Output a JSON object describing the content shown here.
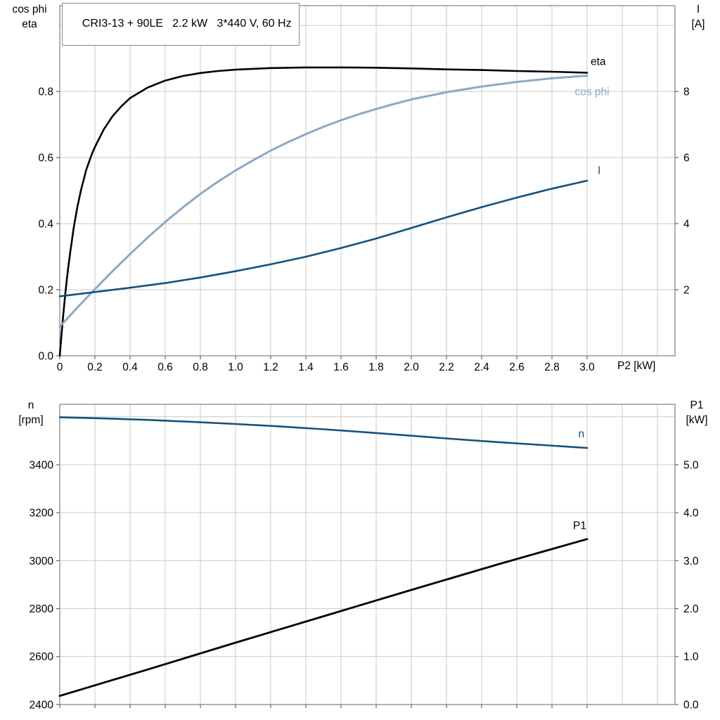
{
  "colors": {
    "grid": "#c9c9c9",
    "frame": "#7f7f7f",
    "tick": "#666666",
    "text": "#000000",
    "black_curve": "#000000",
    "light_blue_curve": "#8ca9c6",
    "dark_blue_curve": "#14517f"
  },
  "chart_data": [
    {
      "type": "line",
      "name": "motor-efficiency-chart",
      "title": "CRI3-13 + 90LE   2.2 kW   3*440 V, 60 Hz",
      "x_axis": {
        "label": "P2 [kW]",
        "min": 0,
        "max": 3.5,
        "show_labels": true,
        "ticks": [
          {
            "v": 0,
            "label": "0"
          },
          {
            "v": 0.2,
            "label": "0.2"
          },
          {
            "v": 0.4,
            "label": "0.4"
          },
          {
            "v": 0.6,
            "label": "0.6"
          },
          {
            "v": 0.8,
            "label": "0.8"
          },
          {
            "v": 1.0,
            "label": "1.0"
          },
          {
            "v": 1.2,
            "label": "1.2"
          },
          {
            "v": 1.4,
            "label": "1.4"
          },
          {
            "v": 1.6,
            "label": "1.6"
          },
          {
            "v": 1.8,
            "label": "1.8"
          },
          {
            "v": 2.0,
            "label": "2.0"
          },
          {
            "v": 2.2,
            "label": "2.2"
          },
          {
            "v": 2.4,
            "label": "2.4"
          },
          {
            "v": 2.6,
            "label": "2.6"
          },
          {
            "v": 2.8,
            "label": "2.8"
          },
          {
            "v": 3.0,
            "label": "3.0"
          }
        ],
        "extra_gridlines": [
          3.2,
          3.4
        ]
      },
      "left_axis": {
        "title_lines": [
          "cos phi",
          "eta"
        ],
        "min": 0,
        "max": 1.06,
        "ticks": [
          {
            "v": 0,
            "label": "0.0"
          },
          {
            "v": 0.2,
            "label": "0.2"
          },
          {
            "v": 0.4,
            "label": "0.4"
          },
          {
            "v": 0.6,
            "label": "0.6"
          },
          {
            "v": 0.8,
            "label": "0.8"
          }
        ],
        "extra_gridlines": [
          1.0
        ]
      },
      "right_axis": {
        "title_lines": [
          "I",
          "[A]"
        ],
        "min": 0,
        "max": 10.6,
        "ticks": [
          {
            "v": 2,
            "label": "2"
          },
          {
            "v": 4,
            "label": "4"
          },
          {
            "v": 6,
            "label": "6"
          },
          {
            "v": 8,
            "label": "8"
          }
        ]
      },
      "series": [
        {
          "name": "eta",
          "label": "eta",
          "axis": "left",
          "color": "#000000",
          "width": 2.6,
          "label_pos": [
            3.02,
            0.892
          ],
          "points": [
            [
              0,
              0
            ],
            [
              0.01,
              0.065
            ],
            [
              0.02,
              0.125
            ],
            [
              0.03,
              0.18
            ],
            [
              0.04,
              0.23
            ],
            [
              0.05,
              0.275
            ],
            [
              0.06,
              0.315
            ],
            [
              0.08,
              0.39
            ],
            [
              0.1,
              0.45
            ],
            [
              0.12,
              0.5
            ],
            [
              0.15,
              0.562
            ],
            [
              0.18,
              0.607
            ],
            [
              0.2,
              0.632
            ],
            [
              0.25,
              0.685
            ],
            [
              0.3,
              0.725
            ],
            [
              0.35,
              0.755
            ],
            [
              0.4,
              0.78
            ],
            [
              0.5,
              0.812
            ],
            [
              0.6,
              0.833
            ],
            [
              0.7,
              0.847
            ],
            [
              0.8,
              0.856
            ],
            [
              0.9,
              0.862
            ],
            [
              1.0,
              0.866
            ],
            [
              1.2,
              0.871
            ],
            [
              1.4,
              0.873
            ],
            [
              1.6,
              0.873
            ],
            [
              1.8,
              0.872
            ],
            [
              2.0,
              0.87
            ],
            [
              2.2,
              0.867
            ],
            [
              2.4,
              0.865
            ],
            [
              2.6,
              0.862
            ],
            [
              2.8,
              0.86
            ],
            [
              3.0,
              0.857
            ]
          ]
        },
        {
          "name": "cos phi",
          "label": "cos phi",
          "axis": "left",
          "color": "#8ca9c6",
          "width": 3,
          "label_pos": [
            2.93,
            0.8
          ],
          "points": [
            [
              0,
              0.088
            ],
            [
              0.1,
              0.146
            ],
            [
              0.2,
              0.202
            ],
            [
              0.3,
              0.256
            ],
            [
              0.4,
              0.308
            ],
            [
              0.5,
              0.358
            ],
            [
              0.6,
              0.405
            ],
            [
              0.7,
              0.449
            ],
            [
              0.8,
              0.49
            ],
            [
              0.9,
              0.527
            ],
            [
              1.0,
              0.561
            ],
            [
              1.1,
              0.592
            ],
            [
              1.2,
              0.621
            ],
            [
              1.3,
              0.647
            ],
            [
              1.4,
              0.671
            ],
            [
              1.5,
              0.693
            ],
            [
              1.6,
              0.713
            ],
            [
              1.7,
              0.731
            ],
            [
              1.8,
              0.747
            ],
            [
              1.9,
              0.762
            ],
            [
              2.0,
              0.776
            ],
            [
              2.2,
              0.798
            ],
            [
              2.4,
              0.815
            ],
            [
              2.6,
              0.829
            ],
            [
              2.8,
              0.84
            ],
            [
              3.0,
              0.848
            ]
          ]
        },
        {
          "name": "I",
          "label": "I",
          "axis": "right",
          "color": "#14517f",
          "width": 2.6,
          "label_pos": [
            3.06,
            5.62
          ],
          "points": [
            [
              0,
              1.8
            ],
            [
              0.2,
              1.93
            ],
            [
              0.4,
              2.06
            ],
            [
              0.6,
              2.2
            ],
            [
              0.8,
              2.37
            ],
            [
              1.0,
              2.56
            ],
            [
              1.2,
              2.77
            ],
            [
              1.4,
              3.0
            ],
            [
              1.6,
              3.26
            ],
            [
              1.8,
              3.55
            ],
            [
              2.0,
              3.87
            ],
            [
              2.2,
              4.19
            ],
            [
              2.4,
              4.5
            ],
            [
              2.6,
              4.79
            ],
            [
              2.8,
              5.06
            ],
            [
              3.0,
              5.3
            ]
          ]
        }
      ]
    },
    {
      "type": "line",
      "name": "motor-speed-power-chart",
      "x_axis": {
        "label": "",
        "min": 0,
        "max": 3.5,
        "show_labels": false,
        "ticks": [
          {
            "v": 0,
            "label": "0"
          },
          {
            "v": 0.2,
            "label": "0.2"
          },
          {
            "v": 0.4,
            "label": "0.4"
          },
          {
            "v": 0.6,
            "label": "0.6"
          },
          {
            "v": 0.8,
            "label": "0.8"
          },
          {
            "v": 1.0,
            "label": "1.0"
          },
          {
            "v": 1.2,
            "label": "1.2"
          },
          {
            "v": 1.4,
            "label": "1.4"
          },
          {
            "v": 1.6,
            "label": "1.6"
          },
          {
            "v": 1.8,
            "label": "1.8"
          },
          {
            "v": 2.0,
            "label": "2.0"
          },
          {
            "v": 2.2,
            "label": "2.2"
          },
          {
            "v": 2.4,
            "label": "2.4"
          },
          {
            "v": 2.6,
            "label": "2.6"
          },
          {
            "v": 2.8,
            "label": "2.8"
          },
          {
            "v": 3.0,
            "label": "3.0"
          }
        ],
        "extra_gridlines": [
          3.2,
          3.4
        ]
      },
      "left_axis": {
        "title_lines": [
          "n",
          "[rpm]"
        ],
        "min": 2400,
        "max": 3652,
        "ticks": [
          {
            "v": 2400,
            "label": "2400"
          },
          {
            "v": 2600,
            "label": "2600"
          },
          {
            "v": 2800,
            "label": "2800"
          },
          {
            "v": 3000,
            "label": "3000"
          },
          {
            "v": 3200,
            "label": "3200"
          },
          {
            "v": 3400,
            "label": "3400"
          }
        ],
        "extra_gridlines": [
          3600
        ]
      },
      "right_axis": {
        "title_lines": [
          "P1",
          "[kW]"
        ],
        "min": 0,
        "max": 6.26,
        "ticks": [
          {
            "v": 0,
            "label": "0.0"
          },
          {
            "v": 1,
            "label": "1.0"
          },
          {
            "v": 2,
            "label": "2.0"
          },
          {
            "v": 3,
            "label": "3.0"
          },
          {
            "v": 4,
            "label": "4.0"
          },
          {
            "v": 5,
            "label": "5.0"
          }
        ]
      },
      "series": [
        {
          "name": "n",
          "label": "n",
          "axis": "left",
          "color": "#14517f",
          "width": 2.6,
          "label_pos": [
            2.95,
            3530
          ],
          "points": [
            [
              0,
              3598
            ],
            [
              0.25,
              3593
            ],
            [
              0.5,
              3587
            ],
            [
              0.75,
              3579
            ],
            [
              1.0,
              3570
            ],
            [
              1.25,
              3560
            ],
            [
              1.5,
              3548
            ],
            [
              1.75,
              3535
            ],
            [
              2.0,
              3521
            ],
            [
              2.25,
              3507
            ],
            [
              2.5,
              3494
            ],
            [
              2.75,
              3482
            ],
            [
              3.0,
              3470
            ]
          ]
        },
        {
          "name": "P1",
          "label": "P1",
          "axis": "right",
          "color": "#000000",
          "width": 2.8,
          "label_pos": [
            2.92,
            3.74
          ],
          "points": [
            [
              0,
              0.18
            ],
            [
              0.5,
              0.73
            ],
            [
              1.0,
              1.29
            ],
            [
              1.5,
              1.84
            ],
            [
              2.0,
              2.39
            ],
            [
              2.5,
              2.93
            ],
            [
              3.0,
              3.45
            ]
          ]
        }
      ]
    }
  ]
}
